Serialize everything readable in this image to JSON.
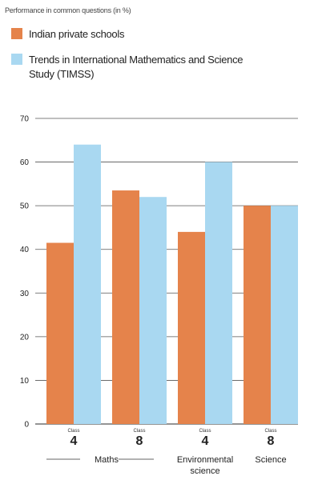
{
  "chart_data": {
    "type": "bar",
    "subtitle": "Performance in common questions (in %)",
    "categories": [
      {
        "class_label": "Class",
        "class_num": "4"
      },
      {
        "class_label": "Class",
        "class_num": "8"
      },
      {
        "class_label": "Class",
        "class_num": "4"
      },
      {
        "class_label": "Class",
        "class_num": "8"
      }
    ],
    "groups": [
      {
        "label": "Maths",
        "span": [
          0,
          1
        ]
      },
      {
        "label": "Environmental science",
        "span": [
          2,
          2
        ]
      },
      {
        "label": "Science",
        "span": [
          3,
          3
        ]
      }
    ],
    "series": [
      {
        "name": "Indian private schools",
        "color": "#e5834b",
        "values": [
          41.5,
          53.5,
          44,
          50
        ]
      },
      {
        "name": "Trends in International Mathematics and Science Study (TIMSS)",
        "color": "#a9d8f1",
        "values": [
          64,
          52,
          60,
          50
        ]
      }
    ],
    "ylim": [
      0,
      70
    ],
    "yticks": [
      0,
      10,
      20,
      30,
      40,
      50,
      60,
      70
    ],
    "grid": true,
    "legend_position": "top-left"
  }
}
